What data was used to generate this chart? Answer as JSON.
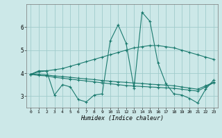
{
  "x": [
    0,
    1,
    2,
    3,
    4,
    5,
    6,
    7,
    8,
    9,
    10,
    11,
    12,
    13,
    14,
    15,
    16,
    17,
    18,
    19,
    20,
    21,
    22,
    23
  ],
  "line_smooth": [
    3.95,
    4.05,
    4.1,
    4.15,
    4.2,
    4.3,
    4.4,
    4.5,
    4.6,
    4.7,
    4.8,
    4.9,
    5.0,
    5.1,
    5.15,
    5.2,
    5.2,
    5.15,
    5.1,
    5.0,
    4.9,
    4.8,
    4.7,
    4.6
  ],
  "line_flat1": [
    3.95,
    3.95,
    3.92,
    3.88,
    3.85,
    3.82,
    3.78,
    3.75,
    3.72,
    3.68,
    3.65,
    3.62,
    3.6,
    3.57,
    3.55,
    3.52,
    3.5,
    3.48,
    3.45,
    3.4,
    3.35,
    3.3,
    3.45,
    3.6
  ],
  "line_flat2": [
    3.95,
    3.9,
    3.88,
    3.82,
    3.78,
    3.74,
    3.7,
    3.66,
    3.62,
    3.58,
    3.54,
    3.5,
    3.46,
    3.44,
    3.42,
    3.4,
    3.38,
    3.36,
    3.34,
    3.3,
    3.26,
    3.22,
    3.4,
    3.58
  ],
  "line_jagged": [
    3.95,
    4.1,
    4.1,
    3.05,
    3.5,
    3.4,
    2.85,
    2.75,
    3.05,
    3.1,
    5.4,
    6.1,
    5.3,
    3.35,
    6.65,
    6.25,
    4.45,
    3.55,
    3.1,
    3.05,
    2.9,
    2.7,
    3.3,
    3.7
  ],
  "line_color": "#1a7a6e",
  "bg_color": "#cce8e8",
  "grid_color": "#a0cccc",
  "xlabel": "Humidex (Indice chaleur)",
  "ylim": [
    2.5,
    7.0
  ],
  "xlim": [
    -0.5,
    23.5
  ],
  "yticks": [
    3,
    4,
    5,
    6
  ],
  "xticks": [
    0,
    1,
    2,
    3,
    4,
    5,
    6,
    7,
    8,
    9,
    10,
    11,
    12,
    13,
    14,
    15,
    16,
    17,
    18,
    19,
    20,
    21,
    22,
    23
  ]
}
